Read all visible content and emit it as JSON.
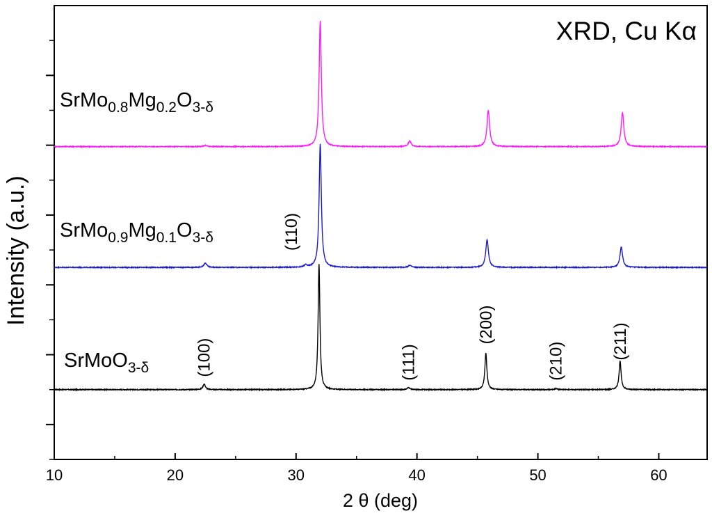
{
  "chart_data": {
    "type": "line",
    "title": "XRD, Cu Kα",
    "xlabel": "2 θ (deg)",
    "ylabel": "Intensity (a.u.)",
    "xlim": [
      10,
      64
    ],
    "ylim": [
      0,
      6.5
    ],
    "x_ticks": [
      10,
      20,
      30,
      40,
      50,
      60
    ],
    "x_tick_labels": [
      "10",
      "20",
      "30",
      "40",
      "50",
      "60"
    ],
    "y_ticks": [
      0.5,
      1.5,
      2.5,
      3.5,
      4.5,
      5.5
    ],
    "grid": false,
    "legend": "none",
    "series": [
      {
        "label_main": "SrMoO",
        "label_sub": "3-δ",
        "color": "#000000",
        "baseline": 1.0,
        "peaks": [
          {
            "x": 22.4,
            "height": 0.08,
            "width": 0.12
          },
          {
            "x": 31.9,
            "height": 1.8,
            "width": 0.09
          },
          {
            "x": 39.3,
            "height": 0.03,
            "width": 0.12
          },
          {
            "x": 45.7,
            "height": 0.52,
            "width": 0.1
          },
          {
            "x": 51.5,
            "height": 0.015,
            "width": 0.12
          },
          {
            "x": 56.8,
            "height": 0.41,
            "width": 0.1
          }
        ]
      },
      {
        "label_main": "SrMo",
        "label_sub1": "0.9",
        "label_mid": "Mg",
        "label_sub2": "0.1",
        "label_end": "O",
        "label_sub3": "3-δ",
        "color": "#1a1acc",
        "baseline": 2.75,
        "peaks": [
          {
            "x": 22.5,
            "height": 0.06,
            "width": 0.15
          },
          {
            "x": 30.8,
            "height": 0.03,
            "width": 0.15
          },
          {
            "x": 32.0,
            "height": 1.77,
            "width": 0.11
          },
          {
            "x": 39.4,
            "height": 0.03,
            "width": 0.15
          },
          {
            "x": 45.8,
            "height": 0.4,
            "width": 0.13
          },
          {
            "x": 56.9,
            "height": 0.29,
            "width": 0.13
          }
        ]
      },
      {
        "label_main": "SrMo",
        "label_sub1": "0.8",
        "label_mid": "Mg",
        "label_sub2": "0.2",
        "label_end": "O",
        "label_sub3": "3-δ",
        "color": "#ff1aff",
        "baseline": 4.48,
        "peaks": [
          {
            "x": 22.5,
            "height": 0.02,
            "width": 0.15
          },
          {
            "x": 32.0,
            "height": 1.8,
            "width": 0.11
          },
          {
            "x": 39.4,
            "height": 0.08,
            "width": 0.14
          },
          {
            "x": 45.9,
            "height": 0.52,
            "width": 0.13
          },
          {
            "x": 57.0,
            "height": 0.49,
            "width": 0.13
          }
        ]
      }
    ],
    "annotations": [
      {
        "text": "(100)",
        "x": 22.4,
        "y": 1.18
      },
      {
        "text": "(110)",
        "x": 29.6,
        "y": 2.99
      },
      {
        "text": "(111)",
        "x": 39.3,
        "y": 1.13
      },
      {
        "text": "(200)",
        "x": 45.7,
        "y": 1.65
      },
      {
        "text": "(210)",
        "x": 51.5,
        "y": 1.13
      },
      {
        "text": "(211)",
        "x": 56.8,
        "y": 1.42
      }
    ]
  }
}
